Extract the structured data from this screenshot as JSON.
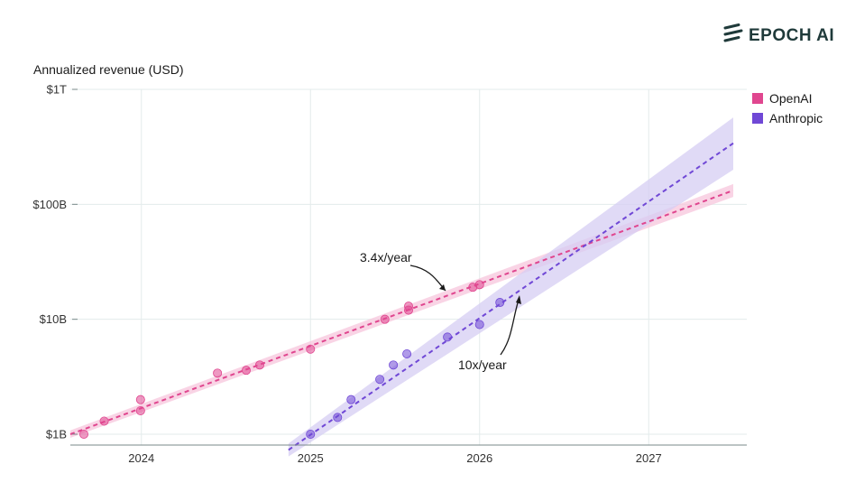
{
  "brand": {
    "name": "EPOCH AI"
  },
  "chart_data": {
    "type": "scatter",
    "title": "",
    "ylabel": "Annualized revenue (USD)",
    "xlabel": "",
    "yscale": "log",
    "ylim": [
      1,
      1000
    ],
    "xlim": [
      2023.58,
      2027.58
    ],
    "yticks": [
      {
        "value": 1,
        "label": "$1B"
      },
      {
        "value": 10,
        "label": "$10B"
      },
      {
        "value": 100,
        "label": "$100B"
      },
      {
        "value": 1000,
        "label": "$1T"
      }
    ],
    "xticks": [
      {
        "value": 2024,
        "label": "2024"
      },
      {
        "value": 2025,
        "label": "2025"
      },
      {
        "value": 2026,
        "label": "2026"
      },
      {
        "value": 2027,
        "label": "2027"
      }
    ],
    "grid": true,
    "legend": {
      "placement": "right"
    },
    "series": [
      {
        "name": "OpenAI",
        "color": "#e0468f",
        "growth_label": "3.4x/year",
        "points": [
          {
            "x": 2023.66,
            "y": 1.0
          },
          {
            "x": 2023.78,
            "y": 1.3
          },
          {
            "x": 2023.995,
            "y": 1.6
          },
          {
            "x": 2023.995,
            "y": 2.0
          },
          {
            "x": 2024.45,
            "y": 3.4
          },
          {
            "x": 2024.62,
            "y": 3.6
          },
          {
            "x": 2024.7,
            "y": 4.0
          },
          {
            "x": 2025.0,
            "y": 5.5
          },
          {
            "x": 2025.44,
            "y": 10.0
          },
          {
            "x": 2025.58,
            "y": 12.0
          },
          {
            "x": 2025.58,
            "y": 13.0
          },
          {
            "x": 2025.96,
            "y": 19.0
          },
          {
            "x": 2026.0,
            "y": 20.0
          }
        ],
        "trend": {
          "x0": 2023.58,
          "y0": 1.0,
          "x1": 2027.5,
          "y1": 132
        },
        "band": {
          "lower": [
            0.93,
            116
          ],
          "upper": [
            1.08,
            150
          ]
        }
      },
      {
        "name": "Anthropic",
        "color": "#7048d6",
        "growth_label": "10x/year",
        "points": [
          {
            "x": 2025.0,
            "y": 1.0
          },
          {
            "x": 2025.16,
            "y": 1.4
          },
          {
            "x": 2025.24,
            "y": 2.0
          },
          {
            "x": 2025.41,
            "y": 3.0
          },
          {
            "x": 2025.49,
            "y": 4.0
          },
          {
            "x": 2025.57,
            "y": 5.0
          },
          {
            "x": 2025.81,
            "y": 7.0
          },
          {
            "x": 2026.0,
            "y": 9.0
          },
          {
            "x": 2026.12,
            "y": 14.0
          }
        ],
        "trend": {
          "x0": 2024.87,
          "y0": 0.73,
          "x1": 2027.5,
          "y1": 340
        },
        "band": {
          "lower": [
            0.64,
            200
          ],
          "upper": [
            0.83,
            570
          ]
        }
      }
    ]
  }
}
